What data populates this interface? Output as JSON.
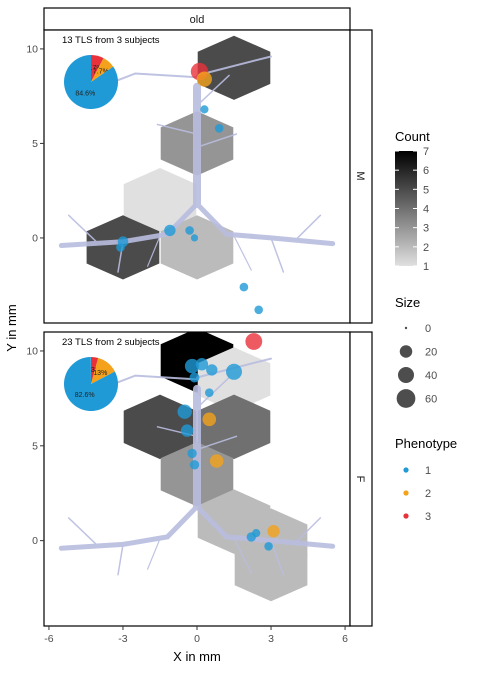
{
  "strip_top": "old",
  "xlabel": "X in mm",
  "ylabel": "Y in mm",
  "x_ticks": [
    -6,
    -3,
    0,
    3,
    6
  ],
  "y_ticks": [
    0,
    5,
    10
  ],
  "legend": {
    "count": {
      "title": "Count",
      "min": 1,
      "max": 7,
      "ticks": [
        1,
        2,
        3,
        4,
        5,
        6,
        7
      ],
      "color_low": "#e0e0e0",
      "color_high": "#000000"
    },
    "size": {
      "title": "Size",
      "values": [
        0,
        20,
        40,
        60
      ]
    },
    "phenotype": {
      "title": "Phenotype",
      "levels": [
        {
          "label": "1",
          "color": "#1f9ad6"
        },
        {
          "label": "2",
          "color": "#f4a21c"
        },
        {
          "label": "3",
          "color": "#e8313a"
        }
      ]
    }
  },
  "chart_data": {
    "type": "scatter",
    "title": "",
    "xlabel": "X in mm",
    "ylabel": "Y in mm",
    "xlim": [
      -6.2,
      6.2
    ],
    "ylim": [
      -4.5,
      11.0
    ],
    "grid": false,
    "facet_column": "old",
    "panels": [
      {
        "row_label": "M",
        "annotation": "13 TLS from 3 subjects",
        "pie": [
          {
            "phenotype": "1",
            "percent": 84.6,
            "label": "84.6%"
          },
          {
            "phenotype": "2",
            "percent": 7.7,
            "label": "7.7%"
          },
          {
            "phenotype": "3",
            "percent": 7.7,
            "label": "7.7%"
          }
        ],
        "hexbins": [
          {
            "x": 1.5,
            "y": 9.0,
            "count": 5
          },
          {
            "x": 0.0,
            "y": 5.0,
            "count": 3
          },
          {
            "x": -1.5,
            "y": 2.0,
            "count": 1
          },
          {
            "x": -3.0,
            "y": -0.5,
            "count": 5
          },
          {
            "x": 0.0,
            "y": -0.5,
            "count": 2
          }
        ],
        "points": [
          {
            "x": 0.1,
            "y": 8.8,
            "size": 50,
            "phenotype": "3"
          },
          {
            "x": 0.3,
            "y": 8.4,
            "size": 35,
            "phenotype": "2"
          },
          {
            "x": 0.3,
            "y": 6.8,
            "size": 5,
            "phenotype": "1"
          },
          {
            "x": 0.9,
            "y": 5.8,
            "size": 6,
            "phenotype": "1"
          },
          {
            "x": -1.1,
            "y": 0.4,
            "size": 15,
            "phenotype": "1"
          },
          {
            "x": -0.3,
            "y": 0.4,
            "size": 6,
            "phenotype": "1"
          },
          {
            "x": -0.1,
            "y": 0.0,
            "size": 3,
            "phenotype": "1"
          },
          {
            "x": -3.0,
            "y": -0.2,
            "size": 12,
            "phenotype": "1"
          },
          {
            "x": -3.1,
            "y": -0.5,
            "size": 6,
            "phenotype": "1"
          },
          {
            "x": 1.9,
            "y": -2.6,
            "size": 6,
            "phenotype": "1"
          },
          {
            "x": 2.5,
            "y": -3.8,
            "size": 6,
            "phenotype": "1"
          }
        ]
      },
      {
        "row_label": "F",
        "annotation": "23 TLS from 2 subjects",
        "pie": [
          {
            "phenotype": "1",
            "percent": 82.6,
            "label": "82.6%"
          },
          {
            "phenotype": "2",
            "percent": 13.0,
            "label": "13%"
          },
          {
            "phenotype": "3",
            "percent": 4.3,
            "label": "4.3%"
          }
        ],
        "hexbins": [
          {
            "x": 0.0,
            "y": 9.5,
            "count": 7
          },
          {
            "x": 1.5,
            "y": 8.5,
            "count": 1
          },
          {
            "x": -1.5,
            "y": 6.0,
            "count": 5
          },
          {
            "x": 1.5,
            "y": 6.0,
            "count": 4
          },
          {
            "x": 0.0,
            "y": 3.5,
            "count": 3
          },
          {
            "x": 1.5,
            "y": 1.0,
            "count": 2
          },
          {
            "x": 3.0,
            "y": 0.0,
            "count": 2
          },
          {
            "x": 3.0,
            "y": -1.5,
            "count": 2
          }
        ],
        "points": [
          {
            "x": 2.3,
            "y": 10.5,
            "size": 45,
            "phenotype": "3"
          },
          {
            "x": -0.2,
            "y": 9.2,
            "size": 30,
            "phenotype": "1"
          },
          {
            "x": 0.2,
            "y": 9.3,
            "size": 20,
            "phenotype": "1"
          },
          {
            "x": 0.6,
            "y": 9.0,
            "size": 15,
            "phenotype": "1"
          },
          {
            "x": 1.5,
            "y": 8.9,
            "size": 40,
            "phenotype": "1"
          },
          {
            "x": -0.1,
            "y": 8.6,
            "size": 10,
            "phenotype": "1"
          },
          {
            "x": 0.5,
            "y": 7.8,
            "size": 6,
            "phenotype": "1"
          },
          {
            "x": -0.5,
            "y": 6.8,
            "size": 30,
            "phenotype": "1"
          },
          {
            "x": -0.4,
            "y": 5.8,
            "size": 20,
            "phenotype": "1"
          },
          {
            "x": 0.5,
            "y": 6.4,
            "size": 25,
            "phenotype": "2"
          },
          {
            "x": -0.2,
            "y": 4.6,
            "size": 8,
            "phenotype": "1"
          },
          {
            "x": -0.1,
            "y": 4.0,
            "size": 8,
            "phenotype": "1"
          },
          {
            "x": 0.8,
            "y": 4.2,
            "size": 25,
            "phenotype": "2"
          },
          {
            "x": 3.1,
            "y": 0.5,
            "size": 20,
            "phenotype": "2"
          },
          {
            "x": 2.2,
            "y": 0.2,
            "size": 8,
            "phenotype": "1"
          },
          {
            "x": 2.4,
            "y": 0.4,
            "size": 5,
            "phenotype": "1"
          },
          {
            "x": 2.9,
            "y": -0.3,
            "size": 6,
            "phenotype": "1"
          }
        ]
      }
    ]
  }
}
